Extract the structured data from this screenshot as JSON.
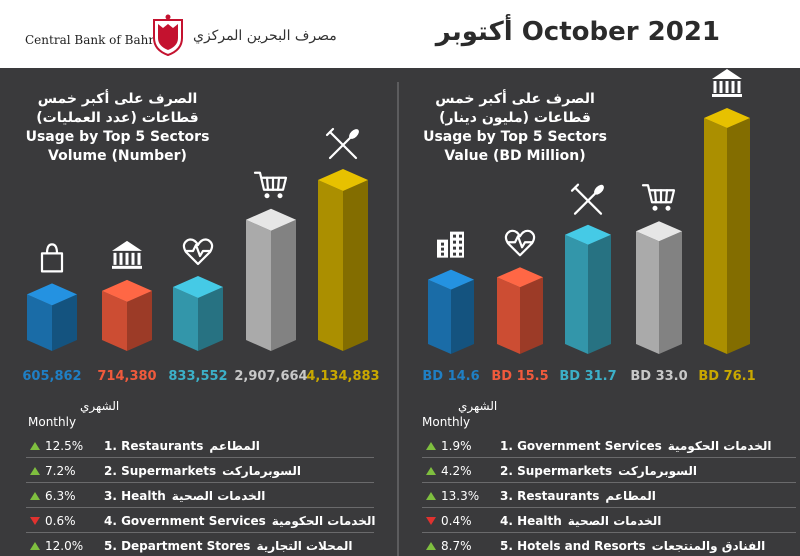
{
  "header": {
    "org_en": "Central Bank of Bahrain",
    "org_ar": "مصرف البحرين المركزي",
    "title": "أكتوبر October 2021"
  },
  "colors": {
    "background": "#3a3a3c",
    "blue": "#1f7fc4",
    "orange": "#f05a3c",
    "teal": "#3cb0c8",
    "gray": "#c8c8c8",
    "gold": "#c9a800",
    "up": "#7fbf3f",
    "down": "#e0322f"
  },
  "left": {
    "title_ar_1": "الصرف على أكبر خمس",
    "title_ar_2": "قطاعات (عدد العمليات)",
    "title_en_1": "Usage by Top 5 Sectors",
    "title_en_2": "Volume (Number)",
    "table_head_ar": "الشهري",
    "table_head_en": "Monthly",
    "rows": [
      {
        "change": "12.5%",
        "dir": "up",
        "label": "1. Restaurants",
        "label_ar": "المطاعم"
      },
      {
        "change": "7.2%",
        "dir": "up",
        "label": "2. Supermarkets",
        "label_ar": "السوبرماركت"
      },
      {
        "change": "6.3%",
        "dir": "up",
        "label": "3. Health",
        "label_ar": "الخدمات الصحية"
      },
      {
        "change": "0.6%",
        "dir": "down",
        "label": "4. Government Services",
        "label_ar": "الخدمات الحكومية"
      },
      {
        "change": "12.0%",
        "dir": "up",
        "label": "5. Department Stores",
        "label_ar": "المحلات التجارية"
      }
    ]
  },
  "right": {
    "title_ar_1": "الصرف على أكبر خمس",
    "title_ar_2": "قطاعات (مليون دينار)",
    "title_en_1": "Usage by Top 5 Sectors",
    "title_en_2": "Value (BD Million)",
    "table_head_ar": "الشهري",
    "table_head_en": "Monthly",
    "rows": [
      {
        "change": "1.9%",
        "dir": "up",
        "label": "1. Government Services",
        "label_ar": "الخدمات الحكومية"
      },
      {
        "change": "4.2%",
        "dir": "up",
        "label": "2. Supermarkets",
        "label_ar": "السوبرماركت"
      },
      {
        "change": "13.3%",
        "dir": "up",
        "label": "3. Restaurants",
        "label_ar": "المطاعم"
      },
      {
        "change": "0.4%",
        "dir": "down",
        "label": "4. Health",
        "label_ar": "الخدمات الصحية"
      },
      {
        "change": "8.7%",
        "dir": "up",
        "label": "5. Hotels and Resorts",
        "label_ar": "الفنادق والمنتجعات"
      }
    ]
  },
  "chart_data": [
    {
      "type": "bar",
      "title": "Usage by Top 5 Sectors Volume (Number)",
      "categories": [
        "Department Stores",
        "Government Services",
        "Health",
        "Supermarkets",
        "Restaurants"
      ],
      "values": [
        605862,
        714380,
        833552,
        2907664,
        4134883
      ],
      "labels": [
        "605,862",
        "714,380",
        "833,552",
        "2,907,664",
        "4,134,883"
      ],
      "icons": [
        "shopping-bag-icon",
        "bank-icon",
        "heartbeat-icon",
        "shopping-cart-icon",
        "fork-knife-icon"
      ],
      "colors": [
        "#1f7fc4",
        "#f05a3c",
        "#3cb0c8",
        "#c8c8c8",
        "#c9a800"
      ],
      "ylim": [
        0,
        4134883
      ]
    },
    {
      "type": "bar",
      "title": "Usage by Top 5 Sectors Value (BD Million)",
      "categories": [
        "Hotels and Resorts",
        "Health",
        "Restaurants",
        "Supermarkets",
        "Government Services"
      ],
      "values": [
        14.6,
        15.5,
        31.7,
        33.0,
        76.1
      ],
      "labels": [
        "BD 14.6",
        "BD 15.5",
        "BD 31.7",
        "BD 33.0",
        "BD 76.1"
      ],
      "icons": [
        "hotel-building-icon",
        "heartbeat-icon",
        "fork-knife-icon",
        "shopping-cart-icon",
        "bank-icon"
      ],
      "colors": [
        "#1f7fc4",
        "#f05a3c",
        "#3cb0c8",
        "#c8c8c8",
        "#c9a800"
      ],
      "ylim": [
        0,
        76.1
      ]
    }
  ]
}
